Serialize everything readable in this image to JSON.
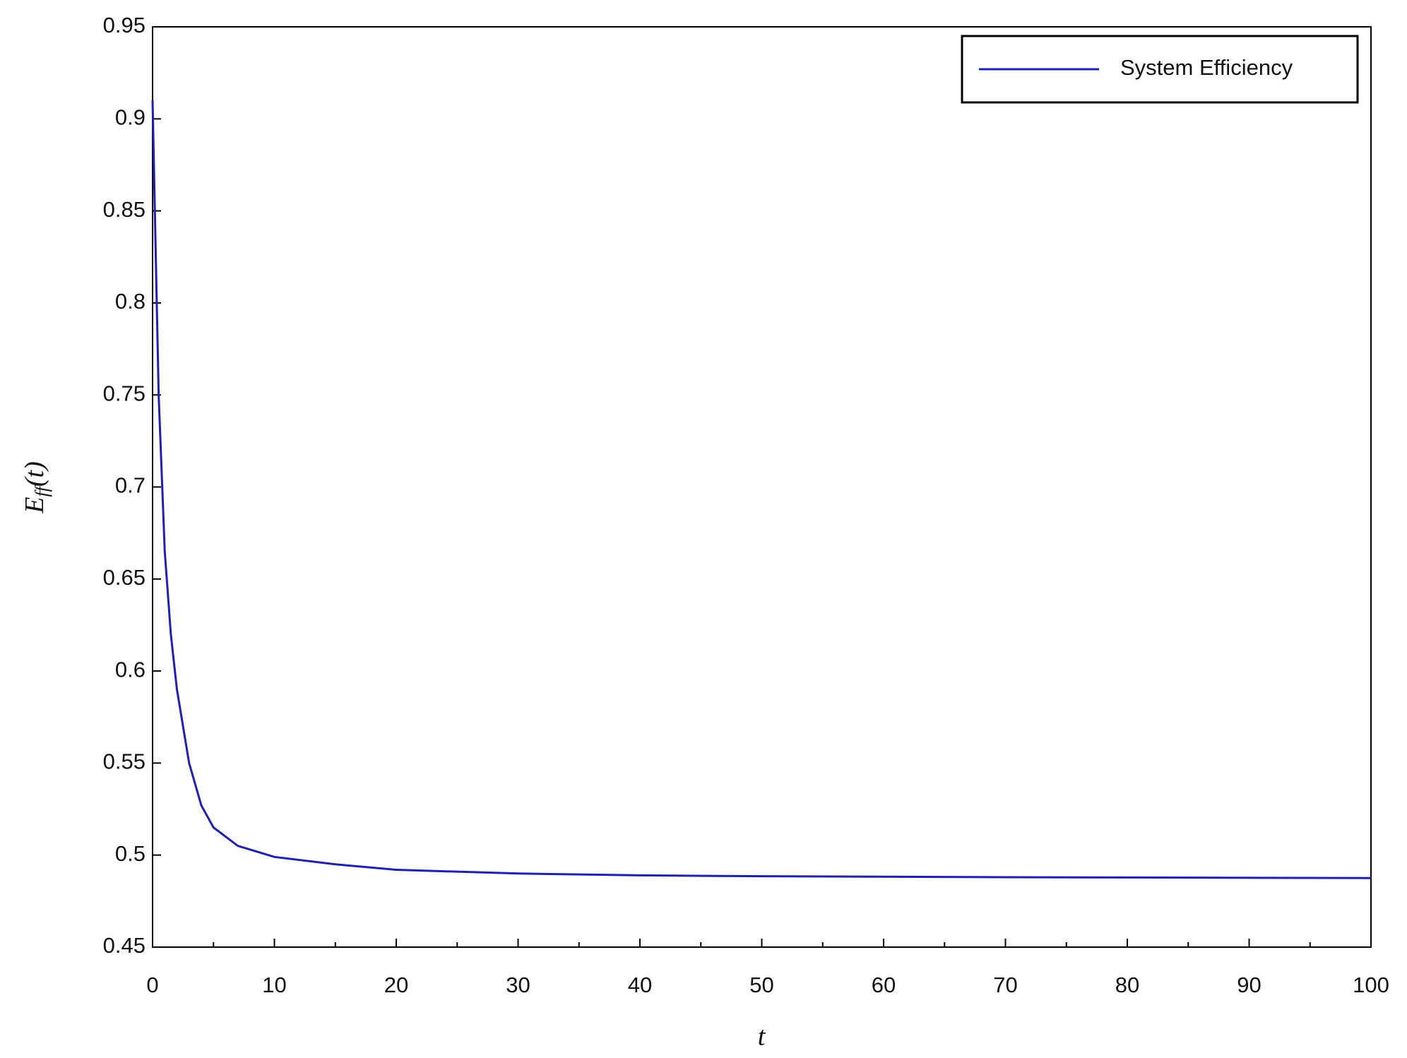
{
  "chart_data": {
    "type": "line",
    "xlabel": "t",
    "ylabel": {
      "base": "E",
      "sub": "ff",
      "rest": "(t)"
    },
    "x": [
      0,
      0.5,
      1,
      1.5,
      2,
      3,
      4,
      5,
      7,
      10,
      15,
      20,
      30,
      40,
      50,
      70,
      100
    ],
    "series": [
      {
        "name": "System Efficiency",
        "color": "#1f1fb0",
        "values": [
          0.91,
          0.75,
          0.665,
          0.62,
          0.59,
          0.55,
          0.527,
          0.515,
          0.505,
          0.499,
          0.495,
          0.492,
          0.49,
          0.489,
          0.4885,
          0.488,
          0.4875
        ]
      }
    ],
    "xlim": [
      0,
      100
    ],
    "xticks": [
      0,
      10,
      20,
      30,
      40,
      50,
      60,
      70,
      80,
      90,
      100
    ],
    "ylim": [
      0.45,
      0.95
    ],
    "yticks": [
      0.45,
      0.5,
      0.55,
      0.6,
      0.65,
      0.7,
      0.75,
      0.8,
      0.85,
      0.9,
      0.95
    ],
    "xminor": true,
    "grid": false,
    "legend": "upper right"
  }
}
